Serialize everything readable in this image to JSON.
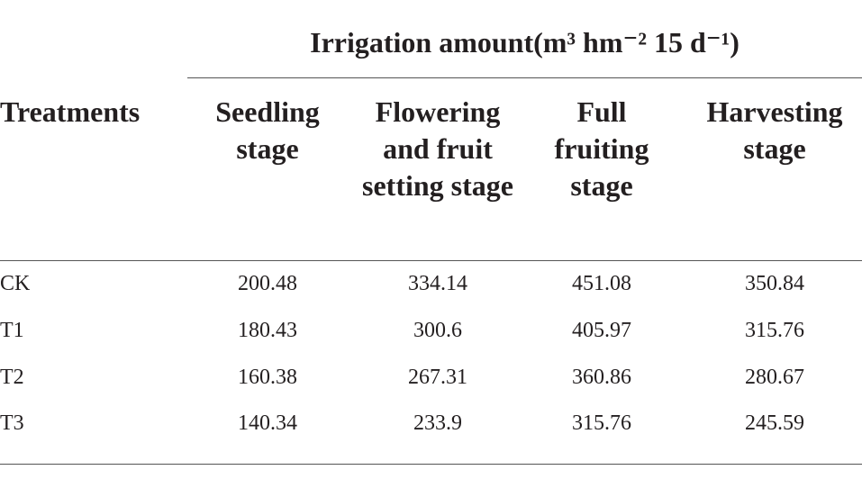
{
  "table": {
    "title": "Irrigation amount(m³ hm⁻² 15 d⁻¹)",
    "columns": [
      "Treatments",
      "Seedling stage",
      "Flowering and fruit setting stage",
      "Full fruiting stage",
      "Harvesting stage"
    ],
    "rows": [
      [
        "CK",
        "200.48",
        "334.14",
        "451.08",
        "350.84"
      ],
      [
        "T1",
        "180.43",
        "300.6",
        "405.97",
        "315.76"
      ],
      [
        "T2",
        "160.38",
        "267.31",
        "360.86",
        "280.67"
      ],
      [
        "T3",
        "140.34",
        "233.9",
        "315.76",
        "245.59"
      ]
    ]
  }
}
